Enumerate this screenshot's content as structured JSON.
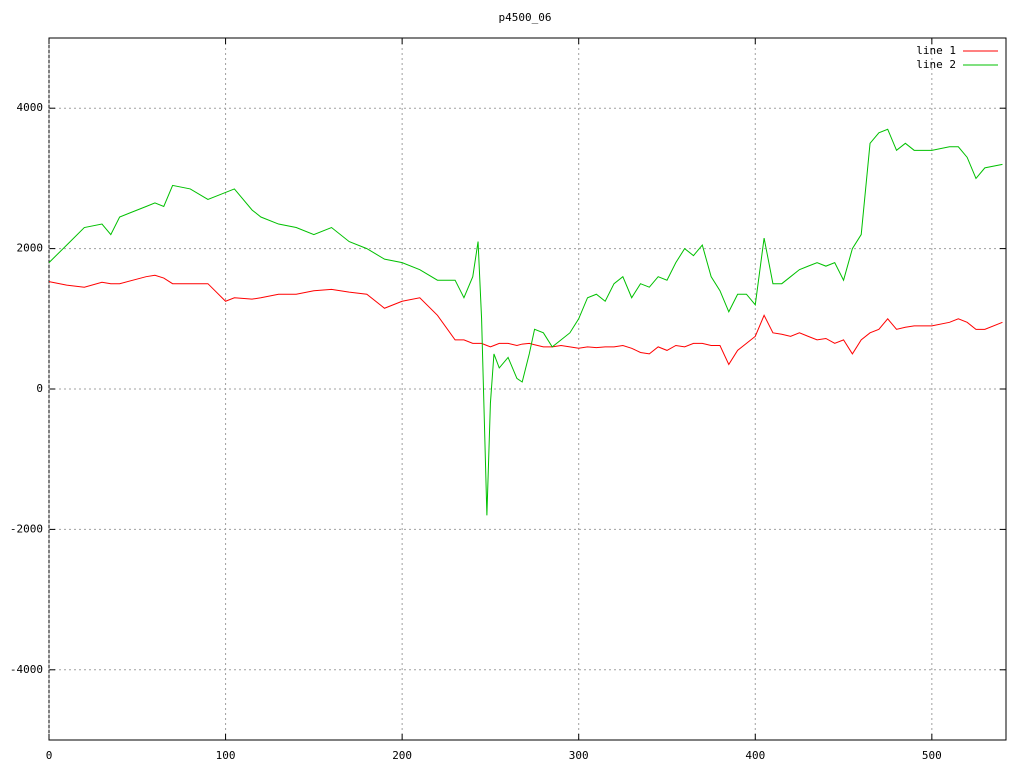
{
  "chart_data": {
    "type": "line",
    "title": "p4500_06",
    "x": [
      0,
      10,
      20,
      30,
      35,
      40,
      55,
      60,
      65,
      70,
      80,
      90,
      100,
      105,
      115,
      120,
      130,
      140,
      150,
      160,
      170,
      180,
      190,
      200,
      210,
      220,
      230,
      235,
      240,
      243,
      245,
      248,
      250,
      252,
      255,
      260,
      265,
      268,
      272,
      275,
      280,
      285,
      290,
      295,
      300,
      305,
      310,
      315,
      320,
      325,
      330,
      335,
      340,
      345,
      350,
      355,
      360,
      365,
      370,
      375,
      380,
      385,
      390,
      395,
      400,
      405,
      410,
      415,
      420,
      425,
      430,
      435,
      440,
      445,
      450,
      455,
      460,
      465,
      470,
      475,
      480,
      485,
      490,
      500,
      510,
      515,
      520,
      525,
      530,
      540
    ],
    "series": [
      {
        "name": "line 1",
        "color": "#ff0000",
        "values": [
          1530,
          1480,
          1450,
          1520,
          1500,
          1500,
          1600,
          1620,
          1580,
          1500,
          1500,
          1500,
          1250,
          1300,
          1280,
          1300,
          1350,
          1350,
          1400,
          1420,
          1380,
          1350,
          1150,
          1250,
          1300,
          1050,
          700,
          700,
          650,
          650,
          650,
          620,
          600,
          620,
          650,
          650,
          620,
          640,
          650,
          630,
          600,
          600,
          620,
          600,
          580,
          600,
          590,
          600,
          600,
          620,
          580,
          520,
          500,
          600,
          550,
          620,
          600,
          650,
          650,
          620,
          620,
          350,
          550,
          650,
          750,
          1050,
          800,
          780,
          750,
          800,
          750,
          700,
          720,
          650,
          700,
          500,
          700,
          800,
          850,
          1000,
          850,
          880,
          900,
          900,
          950,
          1000,
          950,
          850,
          850,
          950
        ]
      },
      {
        "name": "line 2",
        "color": "#00c000",
        "values": [
          1800,
          2050,
          2300,
          2350,
          2200,
          2450,
          2600,
          2650,
          2600,
          2900,
          2850,
          2700,
          2800,
          2850,
          2550,
          2450,
          2350,
          2300,
          2200,
          2300,
          2100,
          2000,
          1850,
          1800,
          1700,
          1550,
          1550,
          1300,
          1600,
          2100,
          1000,
          -1800,
          -200,
          500,
          300,
          450,
          150,
          100,
          500,
          850,
          800,
          600,
          700,
          800,
          1000,
          1300,
          1350,
          1250,
          1500,
          1600,
          1300,
          1500,
          1450,
          1600,
          1550,
          1800,
          2000,
          1900,
          2050,
          1600,
          1400,
          1100,
          1350,
          1350,
          1200,
          2150,
          1500,
          1500,
          1600,
          1700,
          1750,
          1800,
          1750,
          1800,
          1550,
          2000,
          2200,
          3500,
          3650,
          3700,
          3400,
          3500,
          3400,
          3400,
          3450,
          3450,
          3300,
          3000,
          3150,
          3200
        ]
      }
    ],
    "xlim": [
      0,
      542
    ],
    "ylim": [
      -5000,
      5000
    ],
    "xticks": [
      0,
      100,
      200,
      300,
      400,
      500
    ],
    "yticks": [
      -4000,
      -2000,
      0,
      2000,
      4000
    ],
    "grid": true,
    "legend": "top-right"
  }
}
